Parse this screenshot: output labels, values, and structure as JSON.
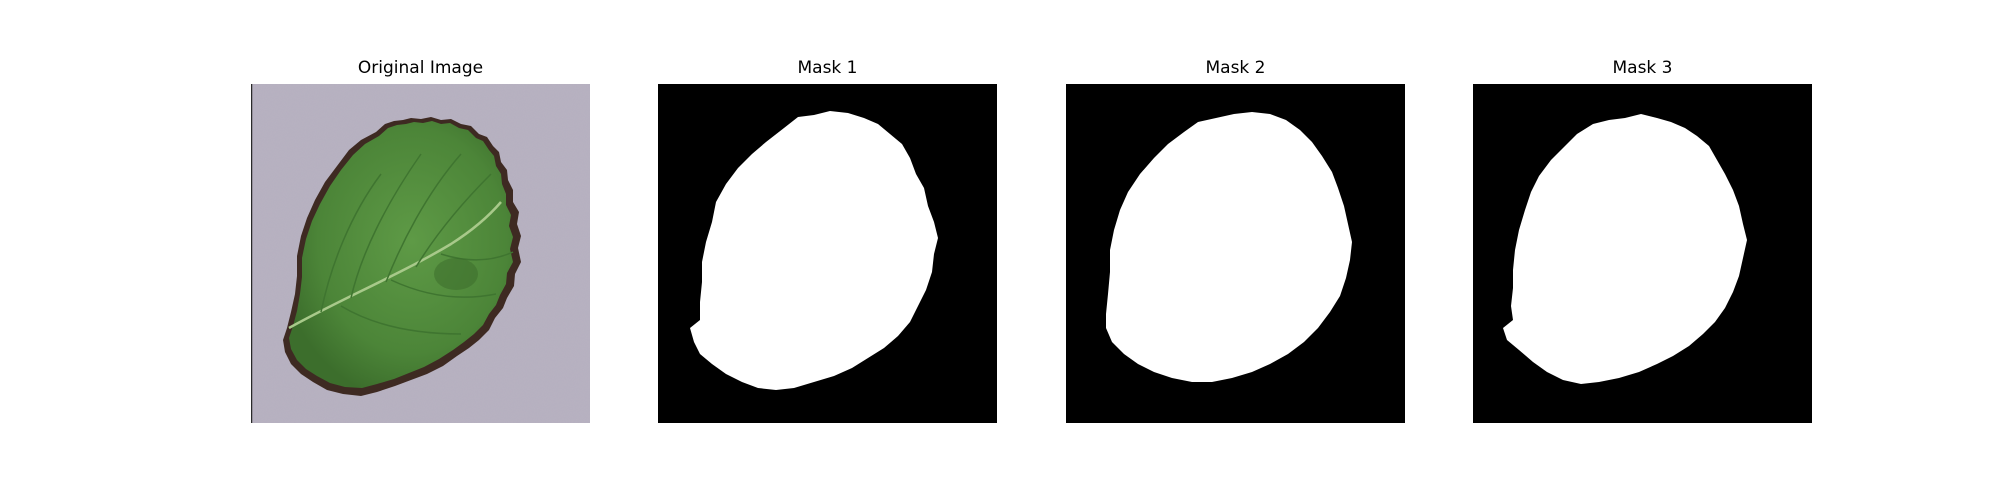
{
  "figure": {
    "panels": [
      {
        "title": "Original Image",
        "kind": "photo"
      },
      {
        "title": "Mask 1",
        "kind": "mask"
      },
      {
        "title": "Mask 2",
        "kind": "mask"
      },
      {
        "title": "Mask 3",
        "kind": "mask"
      }
    ]
  },
  "colors": {
    "background": "#ffffff",
    "mask_background": "#000000",
    "mask_foreground": "#ffffff",
    "photo_background": "#b8b2c2",
    "leaf": "#4f8a3a",
    "leaf_edge": "#3e2a22"
  }
}
